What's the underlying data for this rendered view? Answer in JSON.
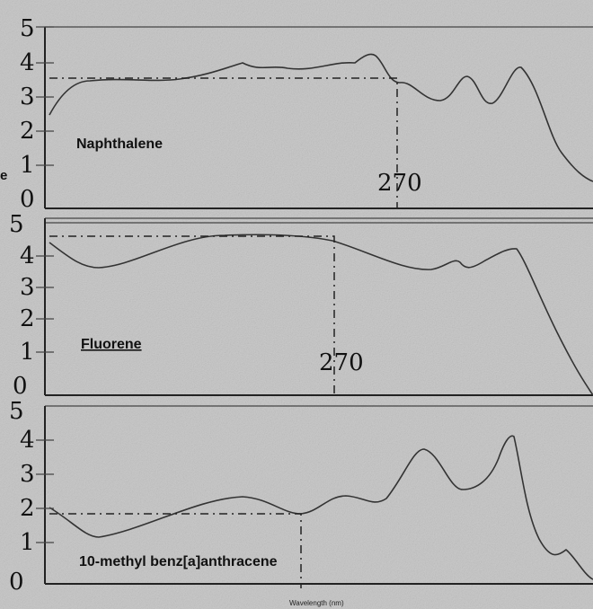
{
  "panels": [
    {
      "label": "Naphthalene",
      "annotation": "270",
      "yticks": [
        "5",
        "4",
        "3",
        "2",
        "1",
        "0"
      ]
    },
    {
      "label": "Fluorene",
      "annotation": "270",
      "yticks": [
        "5",
        "4",
        "3",
        "2",
        "1",
        "0"
      ]
    },
    {
      "label": "10-methyl benz[a]anthracene",
      "yticks": [
        "5",
        "4",
        "3",
        "2",
        "1",
        "0"
      ]
    }
  ],
  "x_axis_label": "Wavelength (nm)",
  "stray_text": "e"
}
